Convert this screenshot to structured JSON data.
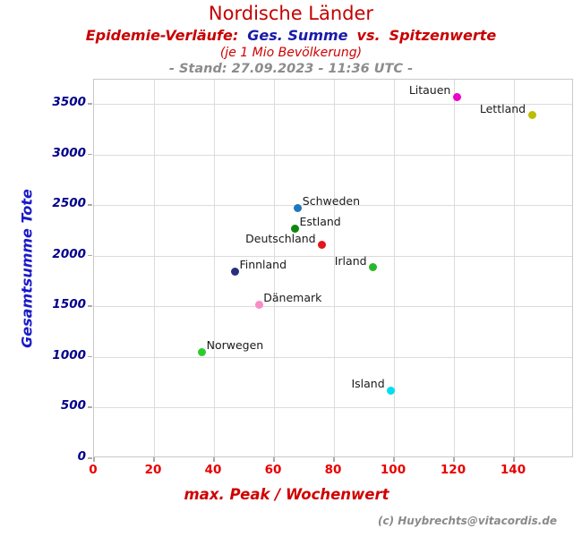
{
  "header": {
    "title": "Nordische Länder",
    "subtitle": [
      {
        "text": "Epidemie-Verläufe:",
        "color": "#c80000"
      },
      {
        "text": "Ges. Summe",
        "color": "#1a1aaa"
      },
      {
        "text": "vs.",
        "color": "#c80000"
      },
      {
        "text": "Spitzenwerte",
        "color": "#c80000"
      }
    ],
    "note": "(je 1 Mio Bevölkerung)",
    "stand": "- Stand: 27.09.2023 - 11:36 UTC -"
  },
  "footer": {
    "credit": "(c) Huybrechts@vitacordis.de"
  },
  "colors": {
    "title_red": "#c40000",
    "subtitle_red": "#c80000",
    "subtitle_navy": "#1a1aaa",
    "note_red": "#d00000",
    "stand_gray": "#8c8c8c",
    "xlabel_red": "#d00000",
    "ylabel_blue": "#1a1ac8",
    "xtick_red": "#e80000",
    "ytick_navy": "#00008b",
    "grid_gray": "#dcdcdc",
    "credit_gray": "#8a8a8a"
  },
  "chart_data": {
    "type": "scatter",
    "title": "Nordische Länder",
    "subtitle": "Epidemie-Verläufe: Ges. Summe vs. Spitzenwerte (je 1 Mio Bevölkerung)",
    "timestamp": "- Stand: 27.09.2023 - 11:36 UTC -",
    "xlabel": "max. Peak / Wochenwert",
    "ylabel": "Gesamtsumme Tote",
    "xlim": [
      0,
      160
    ],
    "ylim": [
      0,
      3740
    ],
    "xticks": [
      0,
      20,
      40,
      60,
      80,
      100,
      120,
      140
    ],
    "yticks": [
      0,
      500,
      1000,
      1500,
      2000,
      2500,
      3000,
      3500
    ],
    "grid": true,
    "legend": false,
    "points": [
      {
        "label": "Litauen",
        "x": 121,
        "y": 3570,
        "color": "#ee00cc",
        "label_side": "left"
      },
      {
        "label": "Lettland",
        "x": 146,
        "y": 3390,
        "color": "#bcbc00",
        "label_side": "left"
      },
      {
        "label": "Schweden",
        "x": 68,
        "y": 2475,
        "color": "#2277bb",
        "label_side": "right"
      },
      {
        "label": "Estland",
        "x": 67,
        "y": 2270,
        "color": "#0d870d",
        "label_side": "right"
      },
      {
        "label": "Deutschland",
        "x": 76,
        "y": 2105,
        "color": "#e01818",
        "label_side": "left"
      },
      {
        "label": "Irland",
        "x": 93,
        "y": 1885,
        "color": "#28b828",
        "label_side": "left"
      },
      {
        "label": "Finnland",
        "x": 47,
        "y": 1845,
        "color": "#28307d",
        "label_side": "right"
      },
      {
        "label": "Dänemark",
        "x": 55,
        "y": 1520,
        "color": "#f88cc8",
        "label_side": "right"
      },
      {
        "label": "Norwegen",
        "x": 36,
        "y": 1050,
        "color": "#2dcc2d",
        "label_side": "right"
      },
      {
        "label": "Island",
        "x": 99,
        "y": 670,
        "color": "#00dff0",
        "label_side": "left"
      }
    ]
  }
}
